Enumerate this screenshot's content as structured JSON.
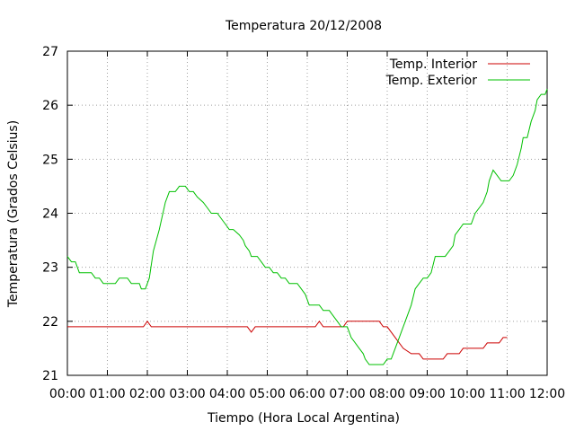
{
  "chart_data": {
    "type": "line",
    "title": "Temperatura 20/12/2008",
    "xlabel": "Tiempo (Hora Local Argentina)",
    "ylabel": "Temperatura (Grados Celsius)",
    "xlim": [
      0,
      12
    ],
    "ylim": [
      21,
      27
    ],
    "x_ticks": [
      {
        "value": 0,
        "label": "00:00"
      },
      {
        "value": 1,
        "label": "01:00"
      },
      {
        "value": 2,
        "label": "02:00"
      },
      {
        "value": 3,
        "label": "03:00"
      },
      {
        "value": 4,
        "label": "04:00"
      },
      {
        "value": 5,
        "label": "05:00"
      },
      {
        "value": 6,
        "label": "06:00"
      },
      {
        "value": 7,
        "label": "07:00"
      },
      {
        "value": 8,
        "label": "08:00"
      },
      {
        "value": 9,
        "label": "09:00"
      },
      {
        "value": 10,
        "label": "10:00"
      },
      {
        "value": 11,
        "label": "11:00"
      },
      {
        "value": 12,
        "label": "12:00"
      }
    ],
    "y_ticks": [
      {
        "value": 21,
        "label": "21"
      },
      {
        "value": 22,
        "label": "22"
      },
      {
        "value": 23,
        "label": "23"
      },
      {
        "value": 24,
        "label": "24"
      },
      {
        "value": 25,
        "label": "25"
      },
      {
        "value": 26,
        "label": "26"
      },
      {
        "value": 27,
        "label": "27"
      }
    ],
    "grid": true,
    "legend_position": "top-right",
    "series": [
      {
        "name": "Temp. Interior",
        "color": "#cc0000",
        "points": [
          [
            0,
            21.9
          ],
          [
            1.9,
            21.9
          ],
          [
            2.0,
            22.0
          ],
          [
            2.1,
            21.9
          ],
          [
            4.5,
            21.9
          ],
          [
            4.6,
            21.8
          ],
          [
            4.7,
            21.9
          ],
          [
            6.2,
            21.9
          ],
          [
            6.3,
            22.0
          ],
          [
            6.4,
            21.9
          ],
          [
            6.9,
            21.9
          ],
          [
            7.0,
            22.0
          ],
          [
            7.8,
            22.0
          ],
          [
            7.9,
            21.9
          ],
          [
            8.0,
            21.9
          ],
          [
            8.2,
            21.7
          ],
          [
            8.4,
            21.5
          ],
          [
            8.6,
            21.4
          ],
          [
            8.8,
            21.4
          ],
          [
            8.9,
            21.3
          ],
          [
            9.4,
            21.3
          ],
          [
            9.5,
            21.4
          ],
          [
            9.8,
            21.4
          ],
          [
            9.9,
            21.5
          ],
          [
            10.4,
            21.5
          ],
          [
            10.5,
            21.6
          ],
          [
            10.8,
            21.6
          ],
          [
            10.9,
            21.7
          ],
          [
            11.0,
            21.7
          ]
        ]
      },
      {
        "name": "Temp. Exterior",
        "color": "#00c000",
        "points": [
          [
            0,
            23.2
          ],
          [
            0.1,
            23.1
          ],
          [
            0.2,
            23.1
          ],
          [
            0.3,
            22.9
          ],
          [
            0.6,
            22.9
          ],
          [
            0.7,
            22.8
          ],
          [
            0.8,
            22.8
          ],
          [
            0.9,
            22.7
          ],
          [
            1.1,
            22.7
          ],
          [
            1.2,
            22.7
          ],
          [
            1.3,
            22.8
          ],
          [
            1.5,
            22.8
          ],
          [
            1.6,
            22.7
          ],
          [
            1.8,
            22.7
          ],
          [
            1.85,
            22.6
          ],
          [
            1.95,
            22.6
          ],
          [
            2.05,
            22.8
          ],
          [
            2.15,
            23.3
          ],
          [
            2.3,
            23.7
          ],
          [
            2.45,
            24.2
          ],
          [
            2.55,
            24.4
          ],
          [
            2.7,
            24.4
          ],
          [
            2.8,
            24.5
          ],
          [
            2.95,
            24.5
          ],
          [
            3.05,
            24.4
          ],
          [
            3.15,
            24.4
          ],
          [
            3.25,
            24.3
          ],
          [
            3.4,
            24.2
          ],
          [
            3.5,
            24.1
          ],
          [
            3.6,
            24.0
          ],
          [
            3.75,
            24.0
          ],
          [
            3.85,
            23.9
          ],
          [
            3.95,
            23.8
          ],
          [
            4.05,
            23.7
          ],
          [
            4.15,
            23.7
          ],
          [
            4.3,
            23.6
          ],
          [
            4.4,
            23.5
          ],
          [
            4.45,
            23.4
          ],
          [
            4.55,
            23.3
          ],
          [
            4.6,
            23.2
          ],
          [
            4.75,
            23.2
          ],
          [
            4.85,
            23.1
          ],
          [
            4.95,
            23.0
          ],
          [
            5.05,
            23.0
          ],
          [
            5.15,
            22.9
          ],
          [
            5.25,
            22.9
          ],
          [
            5.35,
            22.8
          ],
          [
            5.45,
            22.8
          ],
          [
            5.55,
            22.7
          ],
          [
            5.75,
            22.7
          ],
          [
            5.85,
            22.6
          ],
          [
            5.95,
            22.5
          ],
          [
            6.0,
            22.4
          ],
          [
            6.05,
            22.3
          ],
          [
            6.3,
            22.3
          ],
          [
            6.4,
            22.2
          ],
          [
            6.55,
            22.2
          ],
          [
            6.65,
            22.1
          ],
          [
            6.75,
            22.0
          ],
          [
            6.85,
            21.9
          ],
          [
            7.0,
            21.9
          ],
          [
            7.1,
            21.7
          ],
          [
            7.2,
            21.6
          ],
          [
            7.3,
            21.5
          ],
          [
            7.4,
            21.4
          ],
          [
            7.45,
            21.3
          ],
          [
            7.55,
            21.2
          ],
          [
            7.9,
            21.2
          ],
          [
            8.0,
            21.3
          ],
          [
            8.1,
            21.3
          ],
          [
            8.2,
            21.5
          ],
          [
            8.3,
            21.7
          ],
          [
            8.4,
            21.9
          ],
          [
            8.5,
            22.1
          ],
          [
            8.6,
            22.3
          ],
          [
            8.7,
            22.6
          ],
          [
            8.8,
            22.7
          ],
          [
            8.9,
            22.8
          ],
          [
            9.0,
            22.8
          ],
          [
            9.1,
            22.9
          ],
          [
            9.2,
            23.2
          ],
          [
            9.45,
            23.2
          ],
          [
            9.55,
            23.3
          ],
          [
            9.65,
            23.4
          ],
          [
            9.7,
            23.6
          ],
          [
            9.8,
            23.7
          ],
          [
            9.9,
            23.8
          ],
          [
            10.1,
            23.8
          ],
          [
            10.2,
            24.0
          ],
          [
            10.3,
            24.1
          ],
          [
            10.4,
            24.2
          ],
          [
            10.5,
            24.4
          ],
          [
            10.55,
            24.6
          ],
          [
            10.65,
            24.8
          ],
          [
            10.75,
            24.7
          ],
          [
            10.85,
            24.6
          ],
          [
            11.05,
            24.6
          ],
          [
            11.15,
            24.7
          ],
          [
            11.25,
            24.9
          ],
          [
            11.35,
            25.2
          ],
          [
            11.4,
            25.4
          ],
          [
            11.5,
            25.4
          ],
          [
            11.6,
            25.7
          ],
          [
            11.7,
            25.9
          ],
          [
            11.75,
            26.1
          ],
          [
            11.85,
            26.2
          ],
          [
            11.95,
            26.2
          ],
          [
            12.0,
            26.3
          ]
        ]
      }
    ]
  }
}
